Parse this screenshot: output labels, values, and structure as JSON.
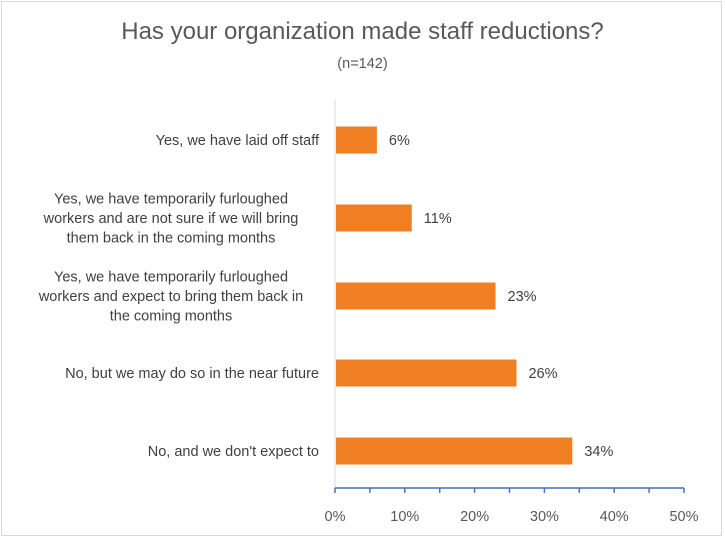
{
  "chart_data": {
    "type": "bar",
    "orientation": "horizontal",
    "title": "Has your organization made staff reductions?",
    "subtitle": "(n=142)",
    "categories": [
      [
        "Yes, we have laid off staff"
      ],
      [
        "Yes, we have temporarily furloughed",
        "workers and are not sure if we will bring",
        "them back in the coming months"
      ],
      [
        "Yes, we have temporarily furloughed",
        "workers and expect to bring them back in",
        "the coming months"
      ],
      [
        "No, but we may do so in the near future"
      ],
      [
        "No, and we don't expect to"
      ]
    ],
    "values": [
      6,
      11,
      23,
      26,
      34
    ],
    "value_labels": [
      "6%",
      "11%",
      "23%",
      "26%",
      "34%"
    ],
    "xlim": [
      0,
      50
    ],
    "x_ticks": [
      "0%",
      "10%",
      "20%",
      "30%",
      "40%",
      "50%"
    ],
    "bar_color": "#f07f24",
    "axis_color": "#4472c4",
    "grid": false,
    "legend": "none"
  }
}
